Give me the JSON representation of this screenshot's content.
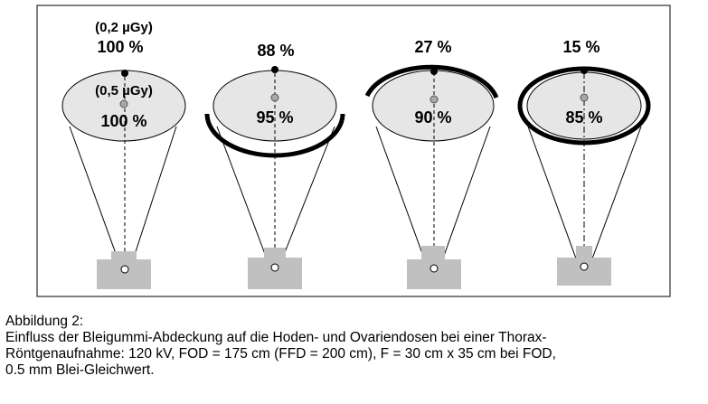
{
  "panels": [
    {
      "gonad_dose_note": "(0,2 µGy)",
      "gonad_dose_percent": "100 %",
      "skin_dose_note": "(0,5 µGy)",
      "skin_dose_percent": "100 %",
      "shield": "none"
    },
    {
      "gonad_dose_percent": "88 %",
      "skin_dose_percent": "95 %",
      "shield": "lower-half"
    },
    {
      "gonad_dose_percent": "27 %",
      "skin_dose_percent": "90 %",
      "shield": "upper-three-quarters"
    },
    {
      "gonad_dose_percent": "15 %",
      "skin_dose_percent": "85 %",
      "shield": "full-ring"
    }
  ],
  "caption": {
    "heading": "Abbildung 2:",
    "line1": "Einfluss der Bleigummi-Abdeckung auf die Hoden- und Ovariendosen bei einer Thorax-",
    "line2": "Röntgenaufnahme: 120 kV, FOD = 175 cm (FFD = 200 cm), F = 30 cm x 35 cm bei FOD,",
    "line3": "0.5 mm Blei-Gleichwert."
  },
  "colors": {
    "ellipse_fill": "#e6e6e6",
    "source_fill": "#c0c0c0",
    "shield": "#000000",
    "frame": "#555555"
  }
}
